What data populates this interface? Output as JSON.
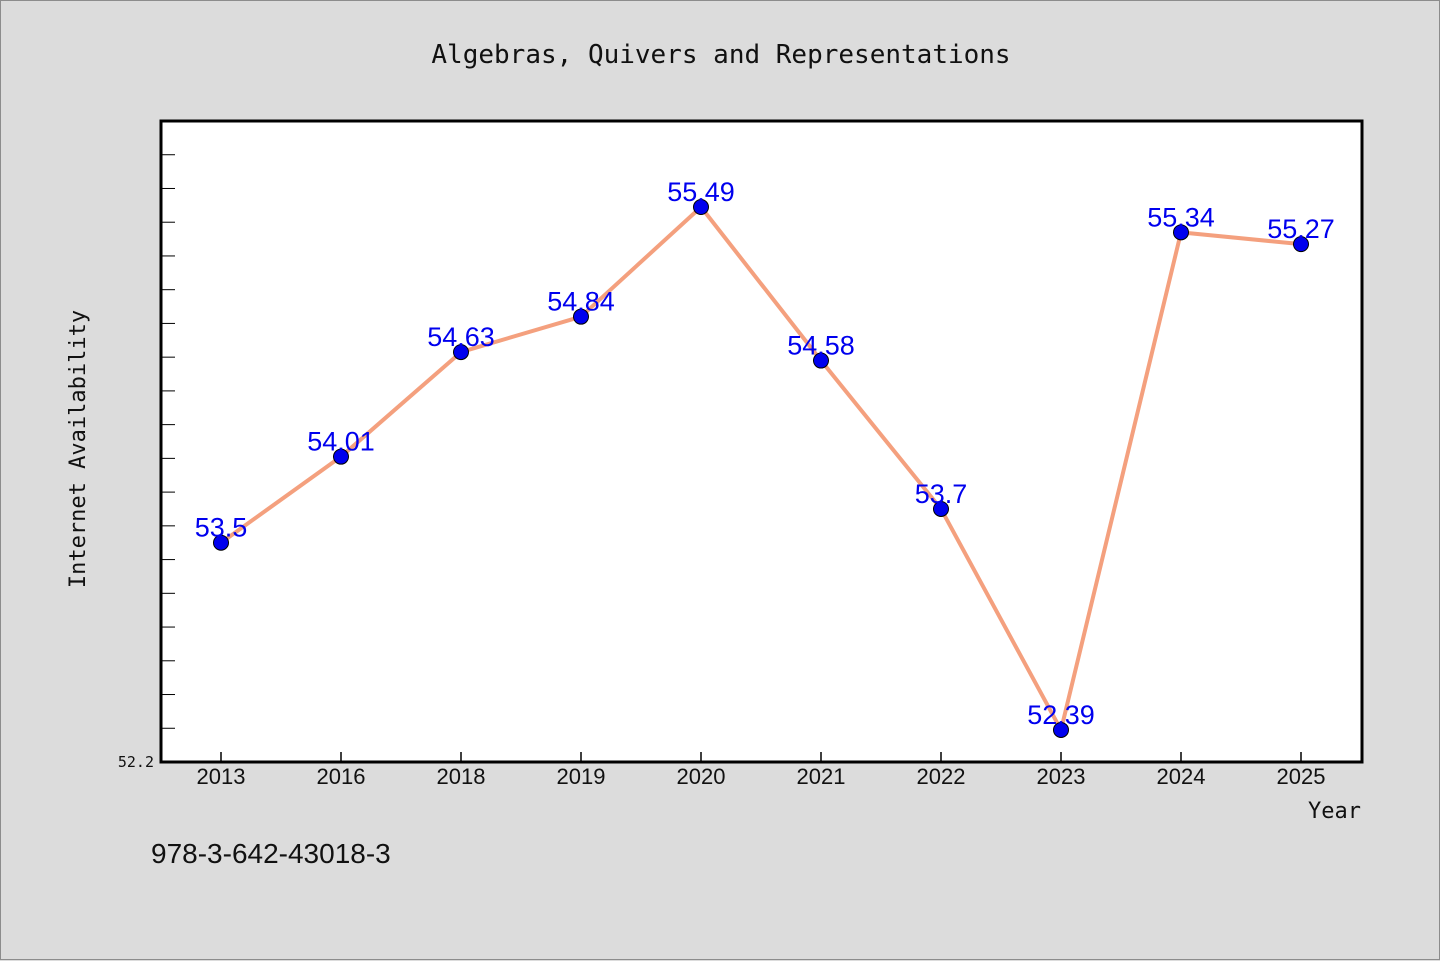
{
  "chart_data": {
    "type": "line",
    "title": "Algebras, Quivers and Representations",
    "xlabel": "Year",
    "ylabel": "Internet Availability",
    "categories": [
      "2013",
      "2016",
      "2018",
      "2019",
      "2020",
      "2021",
      "2022",
      "2023",
      "2024",
      "2025"
    ],
    "values": [
      53.5,
      54.01,
      54.63,
      54.84,
      55.49,
      54.58,
      53.7,
      52.39,
      55.34,
      55.27
    ],
    "data_labels": [
      "53.5",
      "54.01",
      "54.63",
      "54.84",
      "55.49",
      "54.58",
      "53.7",
      "52.39",
      "55.34",
      "55.27"
    ],
    "ylim": [
      52.2,
      56.0
    ],
    "y_min_tick_label": "52.2",
    "grid": false,
    "legend": "none",
    "line_color": "#f4a07e",
    "marker_color": "#0000ee",
    "label_color": "#0000ee"
  },
  "footer": {
    "isbn": "978-3-642-43018-3"
  }
}
